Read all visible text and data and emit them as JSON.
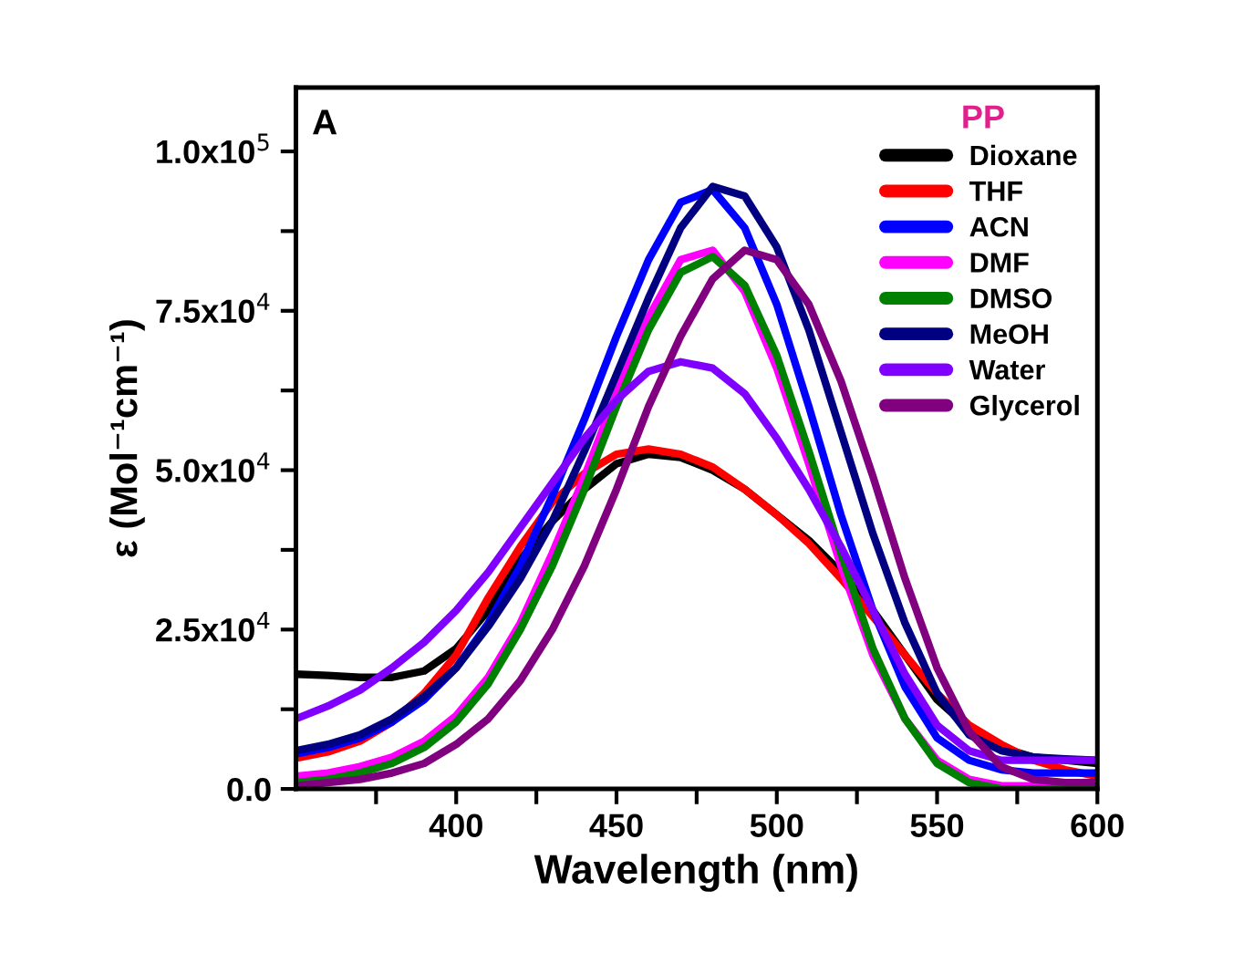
{
  "chart_data": {
    "type": "line",
    "xlabel": "Wavelength (nm)",
    "ylabel": "ε (Mol⁻¹cm⁻¹)",
    "legend_title": "PP",
    "annotations": [
      "A"
    ],
    "legend": "top right",
    "grid": false,
    "marker": "none",
    "line_style": "solid",
    "xlim": [
      350,
      600
    ],
    "ylim": [
      0,
      110000
    ],
    "xticks": [
      {
        "value": 375,
        "label": null
      },
      400,
      {
        "value": 425,
        "label": null
      },
      450,
      {
        "value": 475,
        "label": null
      },
      500,
      {
        "value": 525,
        "label": null
      },
      550,
      {
        "value": 575,
        "label": null
      },
      600
    ],
    "yticks": [
      {
        "value": 0,
        "label": "0.0"
      },
      {
        "value": 12500,
        "label": null
      },
      {
        "value": 25000,
        "label": "2.5x10$^{4}$"
      },
      {
        "value": 37500,
        "label": null
      },
      {
        "value": 50000,
        "label": "5.0x10$^{4}$"
      },
      {
        "value": 62500,
        "label": null
      },
      {
        "value": 75000,
        "label": "7.5x10$^{4}$"
      },
      {
        "value": 87500,
        "label": null
      },
      {
        "value": 100000,
        "label": "1.0x10$^{5}$"
      }
    ],
    "x": [
      350,
      360,
      370,
      380,
      390,
      400,
      410,
      420,
      430,
      440,
      450,
      460,
      470,
      480,
      490,
      500,
      510,
      520,
      530,
      540,
      550,
      560,
      570,
      580,
      590,
      600
    ],
    "series": [
      {
        "name": "Dioxane",
        "color": "#000000",
        "values": [
          18000,
          17800,
          17500,
          17500,
          18500,
          22000,
          28000,
          36000,
          42000,
          47000,
          51000,
          52500,
          52000,
          50000,
          47000,
          43000,
          39000,
          34000,
          28000,
          21000,
          14000,
          9500,
          6500,
          5000,
          4500,
          4000
        ]
      },
      {
        "name": "THF",
        "color": "#ff0000",
        "values": [
          4800,
          5800,
          7500,
          10500,
          15000,
          21000,
          30000,
          38000,
          45000,
          49500,
          52500,
          53300,
          52500,
          50500,
          47000,
          43000,
          38500,
          33000,
          27000,
          21000,
          15000,
          10000,
          7000,
          4500,
          3000,
          2000
        ]
      },
      {
        "name": "ACN",
        "color": "#0000ff",
        "values": [
          5500,
          6500,
          8000,
          10500,
          14000,
          19000,
          26000,
          35000,
          46000,
          58000,
          71000,
          83000,
          92000,
          94000,
          88000,
          76000,
          60000,
          43000,
          28000,
          16000,
          8000,
          4500,
          3000,
          2500,
          2500,
          2500
        ]
      },
      {
        "name": "DMF",
        "color": "#ff00ff",
        "values": [
          2000,
          2500,
          3500,
          5000,
          7500,
          11500,
          17500,
          26000,
          37000,
          49000,
          62000,
          74000,
          83000,
          84500,
          78000,
          66000,
          51000,
          35000,
          21000,
          11000,
          4500,
          1500,
          500,
          500,
          500,
          500
        ]
      },
      {
        "name": "DMSO",
        "color": "#008000",
        "values": [
          1000,
          1500,
          2500,
          4000,
          6500,
          10500,
          16500,
          25000,
          35000,
          47000,
          60000,
          72000,
          81000,
          83500,
          79000,
          68000,
          53000,
          37000,
          22000,
          11000,
          4000,
          1000,
          0,
          0,
          0,
          0
        ]
      },
      {
        "name": "MeOH",
        "color": "#000080",
        "values": [
          6000,
          7000,
          8500,
          11000,
          14500,
          19000,
          25500,
          33000,
          42000,
          53000,
          65000,
          77000,
          88000,
          94500,
          93000,
          85000,
          72000,
          56000,
          40000,
          26000,
          15000,
          8500,
          6000,
          5000,
          4700,
          4500
        ]
      },
      {
        "name": "Water",
        "color": "#8000ff",
        "values": [
          11000,
          13000,
          15500,
          19000,
          23000,
          28000,
          34000,
          41000,
          48000,
          55000,
          61000,
          65500,
          67000,
          66000,
          62000,
          55000,
          47000,
          38000,
          28000,
          18000,
          10000,
          6000,
          4500,
          4500,
          4500,
          4500
        ]
      },
      {
        "name": "Glycerol",
        "color": "#800080",
        "values": [
          500,
          1000,
          1500,
          2500,
          4000,
          7000,
          11000,
          17000,
          25000,
          35000,
          47000,
          60000,
          71000,
          80000,
          84500,
          83000,
          76000,
          64000,
          49000,
          33000,
          19000,
          9000,
          3500,
          1500,
          1000,
          1000
        ]
      }
    ]
  }
}
